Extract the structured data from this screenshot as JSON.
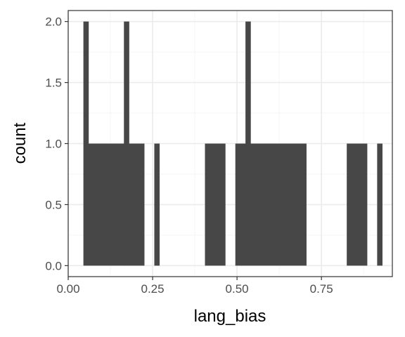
{
  "chart_data": {
    "type": "bar",
    "xlabel": "lang_bias",
    "ylabel": "count",
    "xlim": [
      0,
      0.96
    ],
    "ylim": [
      -0.09,
      2.09
    ],
    "x_ticks": [
      0.0,
      0.25,
      0.5,
      0.75
    ],
    "x_tick_labels": [
      "0.00",
      "0.25",
      "0.50",
      "0.75"
    ],
    "y_ticks": [
      0.0,
      0.5,
      1.0,
      1.5,
      2.0
    ],
    "y_tick_labels": [
      "0.0",
      "0.5",
      "1.0",
      "1.5",
      "2.0"
    ],
    "grid": true,
    "bin_width": 0.015,
    "bins": [
      {
        "x0": 0.045,
        "x1": 0.06,
        "count": 2
      },
      {
        "x0": 0.06,
        "x1": 0.075,
        "count": 1
      },
      {
        "x0": 0.075,
        "x1": 0.09,
        "count": 1
      },
      {
        "x0": 0.09,
        "x1": 0.105,
        "count": 1
      },
      {
        "x0": 0.105,
        "x1": 0.12,
        "count": 1
      },
      {
        "x0": 0.12,
        "x1": 0.135,
        "count": 1
      },
      {
        "x0": 0.135,
        "x1": 0.15,
        "count": 1
      },
      {
        "x0": 0.15,
        "x1": 0.165,
        "count": 1
      },
      {
        "x0": 0.165,
        "x1": 0.18,
        "count": 2
      },
      {
        "x0": 0.18,
        "x1": 0.195,
        "count": 1
      },
      {
        "x0": 0.195,
        "x1": 0.21,
        "count": 1
      },
      {
        "x0": 0.21,
        "x1": 0.225,
        "count": 1
      },
      {
        "x0": 0.255,
        "x1": 0.27,
        "count": 1
      },
      {
        "x0": 0.405,
        "x1": 0.42,
        "count": 1
      },
      {
        "x0": 0.42,
        "x1": 0.435,
        "count": 1
      },
      {
        "x0": 0.435,
        "x1": 0.45,
        "count": 1
      },
      {
        "x0": 0.45,
        "x1": 0.465,
        "count": 1
      },
      {
        "x0": 0.495,
        "x1": 0.51,
        "count": 1
      },
      {
        "x0": 0.51,
        "x1": 0.525,
        "count": 1
      },
      {
        "x0": 0.525,
        "x1": 0.54,
        "count": 2
      },
      {
        "x0": 0.54,
        "x1": 0.555,
        "count": 1
      },
      {
        "x0": 0.555,
        "x1": 0.57,
        "count": 1
      },
      {
        "x0": 0.57,
        "x1": 0.585,
        "count": 1
      },
      {
        "x0": 0.585,
        "x1": 0.6,
        "count": 1
      },
      {
        "x0": 0.6,
        "x1": 0.615,
        "count": 1
      },
      {
        "x0": 0.615,
        "x1": 0.63,
        "count": 1
      },
      {
        "x0": 0.63,
        "x1": 0.645,
        "count": 1
      },
      {
        "x0": 0.645,
        "x1": 0.66,
        "count": 1
      },
      {
        "x0": 0.66,
        "x1": 0.675,
        "count": 1
      },
      {
        "x0": 0.675,
        "x1": 0.69,
        "count": 1
      },
      {
        "x0": 0.69,
        "x1": 0.705,
        "count": 1
      },
      {
        "x0": 0.825,
        "x1": 0.84,
        "count": 1
      },
      {
        "x0": 0.84,
        "x1": 0.855,
        "count": 1
      },
      {
        "x0": 0.855,
        "x1": 0.87,
        "count": 1
      },
      {
        "x0": 0.87,
        "x1": 0.885,
        "count": 1
      },
      {
        "x0": 0.915,
        "x1": 0.93,
        "count": 1
      }
    ],
    "colors": {
      "bar": "#474747",
      "panel_border": "#333333",
      "grid_major": "#ebebeb",
      "grid_minor": "#f5f5f5",
      "tick": "#333333"
    }
  }
}
